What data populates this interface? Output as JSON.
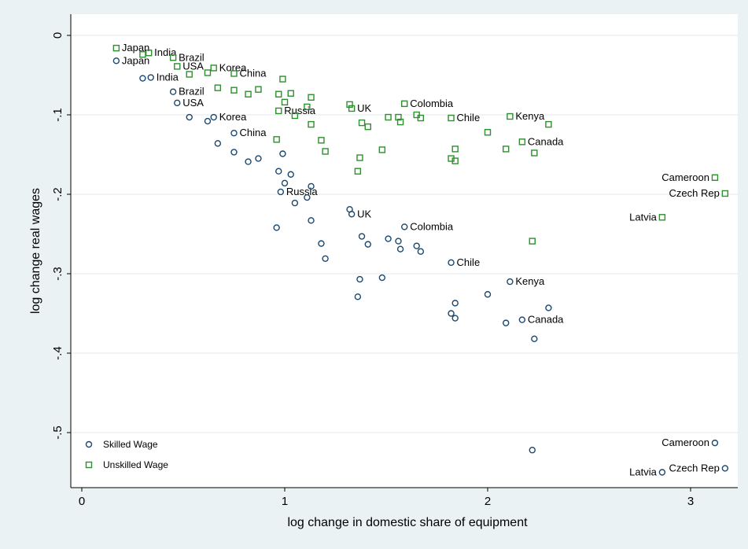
{
  "chart_data": {
    "type": "scatter",
    "xlabel": "log change in domestic share of equipment",
    "ylabel": "log change real wages",
    "xlim": [
      -0.05,
      3.2
    ],
    "ylim": [
      -0.55,
      0.03
    ],
    "x_ticks": [
      0,
      1,
      2,
      3
    ],
    "y_ticks": [
      0,
      -0.1,
      -0.2,
      -0.3,
      -0.4,
      -0.5
    ],
    "x_tick_labels": [
      "0",
      "1",
      "2",
      "3"
    ],
    "y_tick_labels": [
      "0",
      "-.1",
      "-.2",
      "-.3",
      "-.4",
      "-.5"
    ],
    "grid": true,
    "legend_position": "bottom-left",
    "colors": {
      "skilled": "#1a476f",
      "unskilled": "#2d8f2d",
      "background": "#eaf2f3",
      "plot_bg": "#ffffff"
    },
    "series": [
      {
        "name": "Skilled Wage",
        "marker": "circle",
        "points": [
          {
            "x": 0.17,
            "y": -0.032,
            "label": "Japan"
          },
          {
            "x": 0.3,
            "y": -0.054
          },
          {
            "x": 0.34,
            "y": -0.053,
            "label": "India"
          },
          {
            "x": 0.45,
            "y": -0.071,
            "label": "Brazil"
          },
          {
            "x": 0.47,
            "y": -0.085,
            "label": "USA"
          },
          {
            "x": 0.53,
            "y": -0.103
          },
          {
            "x": 0.62,
            "y": -0.108
          },
          {
            "x": 0.65,
            "y": -0.103,
            "label": "Korea"
          },
          {
            "x": 0.67,
            "y": -0.136
          },
          {
            "x": 0.75,
            "y": -0.123,
            "label": "China"
          },
          {
            "x": 0.75,
            "y": -0.147
          },
          {
            "x": 0.82,
            "y": -0.159
          },
          {
            "x": 0.87,
            "y": -0.155
          },
          {
            "x": 0.97,
            "y": -0.171
          },
          {
            "x": 0.98,
            "y": -0.197,
            "label": "Russia"
          },
          {
            "x": 0.99,
            "y": -0.149
          },
          {
            "x": 1.0,
            "y": -0.186
          },
          {
            "x": 1.03,
            "y": -0.175
          },
          {
            "x": 1.05,
            "y": -0.211
          },
          {
            "x": 0.96,
            "y": -0.242
          },
          {
            "x": 1.11,
            "y": -0.204
          },
          {
            "x": 1.13,
            "y": -0.19
          },
          {
            "x": 1.13,
            "y": -0.233
          },
          {
            "x": 1.18,
            "y": -0.262
          },
          {
            "x": 1.2,
            "y": -0.281
          },
          {
            "x": 1.32,
            "y": -0.219
          },
          {
            "x": 1.33,
            "y": -0.225,
            "label": "UK"
          },
          {
            "x": 1.38,
            "y": -0.253
          },
          {
            "x": 1.41,
            "y": -0.263
          },
          {
            "x": 1.37,
            "y": -0.307
          },
          {
            "x": 1.36,
            "y": -0.329
          },
          {
            "x": 1.48,
            "y": -0.305
          },
          {
            "x": 1.51,
            "y": -0.256
          },
          {
            "x": 1.56,
            "y": -0.259
          },
          {
            "x": 1.57,
            "y": -0.269
          },
          {
            "x": 1.59,
            "y": -0.241,
            "label": "Colombia"
          },
          {
            "x": 1.65,
            "y": -0.265
          },
          {
            "x": 1.67,
            "y": -0.272
          },
          {
            "x": 1.82,
            "y": -0.286,
            "label": "Chile"
          },
          {
            "x": 1.82,
            "y": -0.35
          },
          {
            "x": 1.84,
            "y": -0.337
          },
          {
            "x": 1.84,
            "y": -0.356
          },
          {
            "x": 2.0,
            "y": -0.326
          },
          {
            "x": 2.09,
            "y": -0.362
          },
          {
            "x": 2.11,
            "y": -0.31,
            "label": "Kenya"
          },
          {
            "x": 2.17,
            "y": -0.358,
            "label": "Canada"
          },
          {
            "x": 2.22,
            "y": -0.522
          },
          {
            "x": 2.23,
            "y": -0.382
          },
          {
            "x": 2.3,
            "y": -0.343
          },
          {
            "x": 2.86,
            "y": -0.55,
            "label": "Latvia"
          },
          {
            "x": 3.12,
            "y": -0.513,
            "label": "Cameroon"
          },
          {
            "x": 3.17,
            "y": -0.545,
            "label": "Czech Rep"
          }
        ]
      },
      {
        "name": "Unskilled Wage",
        "marker": "square",
        "points": [
          {
            "x": 0.17,
            "y": -0.016,
            "label": "Japan"
          },
          {
            "x": 0.3,
            "y": -0.024
          },
          {
            "x": 0.33,
            "y": -0.022,
            "label": "India"
          },
          {
            "x": 0.45,
            "y": -0.028,
            "label": "Brazil"
          },
          {
            "x": 0.47,
            "y": -0.039,
            "label": "USA"
          },
          {
            "x": 0.53,
            "y": -0.049
          },
          {
            "x": 0.62,
            "y": -0.047
          },
          {
            "x": 0.65,
            "y": -0.041,
            "label": "Korea"
          },
          {
            "x": 0.67,
            "y": -0.066
          },
          {
            "x": 0.75,
            "y": -0.048,
            "label": "China"
          },
          {
            "x": 0.75,
            "y": -0.069
          },
          {
            "x": 0.82,
            "y": -0.074
          },
          {
            "x": 0.87,
            "y": -0.068
          },
          {
            "x": 0.96,
            "y": -0.131
          },
          {
            "x": 0.97,
            "y": -0.074
          },
          {
            "x": 0.97,
            "y": -0.095,
            "label": "Russia"
          },
          {
            "x": 0.99,
            "y": -0.055
          },
          {
            "x": 1.0,
            "y": -0.084
          },
          {
            "x": 1.03,
            "y": -0.073
          },
          {
            "x": 1.05,
            "y": -0.101
          },
          {
            "x": 1.11,
            "y": -0.09
          },
          {
            "x": 1.13,
            "y": -0.078
          },
          {
            "x": 1.13,
            "y": -0.112
          },
          {
            "x": 1.18,
            "y": -0.132
          },
          {
            "x": 1.2,
            "y": -0.146
          },
          {
            "x": 1.32,
            "y": -0.087
          },
          {
            "x": 1.33,
            "y": -0.092,
            "label": "UK"
          },
          {
            "x": 1.36,
            "y": -0.171
          },
          {
            "x": 1.37,
            "y": -0.154
          },
          {
            "x": 1.38,
            "y": -0.11
          },
          {
            "x": 1.41,
            "y": -0.115
          },
          {
            "x": 1.48,
            "y": -0.144
          },
          {
            "x": 1.51,
            "y": -0.103
          },
          {
            "x": 1.56,
            "y": -0.103
          },
          {
            "x": 1.57,
            "y": -0.109
          },
          {
            "x": 1.59,
            "y": -0.086,
            "label": "Colombia"
          },
          {
            "x": 1.65,
            "y": -0.1
          },
          {
            "x": 1.67,
            "y": -0.104
          },
          {
            "x": 1.82,
            "y": -0.104,
            "label": "Chile"
          },
          {
            "x": 1.82,
            "y": -0.155
          },
          {
            "x": 1.84,
            "y": -0.143
          },
          {
            "x": 1.84,
            "y": -0.158
          },
          {
            "x": 2.0,
            "y": -0.122
          },
          {
            "x": 2.09,
            "y": -0.143
          },
          {
            "x": 2.11,
            "y": -0.102,
            "label": "Kenya"
          },
          {
            "x": 2.17,
            "y": -0.134,
            "label": "Canada"
          },
          {
            "x": 2.22,
            "y": -0.259
          },
          {
            "x": 2.23,
            "y": -0.148
          },
          {
            "x": 2.3,
            "y": -0.112
          },
          {
            "x": 2.86,
            "y": -0.229,
            "label": "Latvia"
          },
          {
            "x": 3.12,
            "y": -0.179,
            "label": "Cameroon"
          },
          {
            "x": 3.17,
            "y": -0.199,
            "label": "Czech Rep"
          }
        ]
      }
    ]
  }
}
